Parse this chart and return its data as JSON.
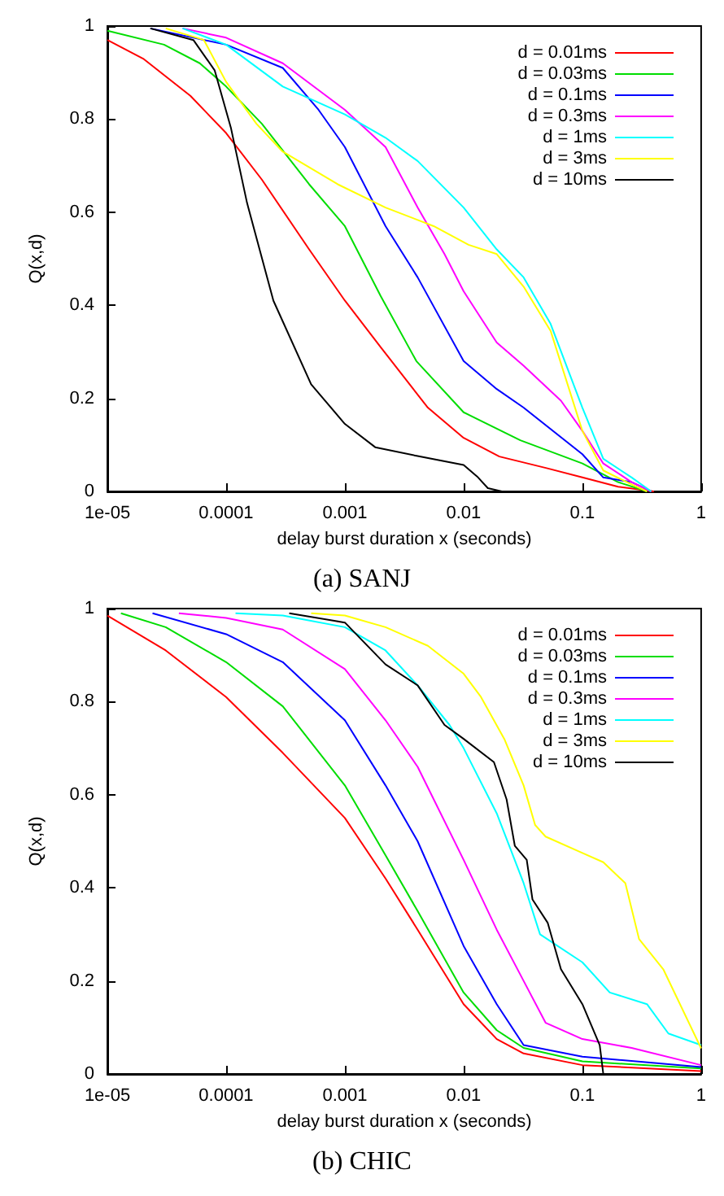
{
  "chart_data": [
    {
      "type": "line",
      "xlabel": "delay burst duration x (seconds)",
      "ylabel": "Q(x,d)",
      "annotations": [
        "(a) SANJ"
      ],
      "log": "x",
      "legend": "top right",
      "xlim": [
        1e-05,
        1
      ],
      "ylim": [
        0,
        1
      ],
      "xticks": [
        {
          "value": 1e-05,
          "label": "1e-05"
        },
        0.0001,
        0.001,
        0.01,
        0.1,
        1
      ],
      "yticks": [
        0,
        0.2,
        0.4,
        0.6,
        0.8,
        1
      ],
      "series": [
        {
          "name": "d = 0.01ms",
          "color": "#ff0000",
          "x": [
            1e-05,
            2e-05,
            5e-05,
            0.0001,
            0.0002,
            0.0005,
            0.001,
            0.002,
            0.005,
            0.01,
            0.02,
            0.05,
            0.1,
            0.2,
            0.4
          ],
          "values": [
            0.97,
            0.93,
            0.85,
            0.77,
            0.67,
            0.52,
            0.41,
            0.31,
            0.18,
            0.115,
            0.075,
            0.05,
            0.03,
            0.01,
            0
          ]
        },
        {
          "name": "d = 0.03ms",
          "color": "#00dd00",
          "x": [
            1e-05,
            3e-05,
            6e-05,
            0.0001,
            0.0002,
            0.0005,
            0.001,
            0.002,
            0.004,
            0.01,
            0.03,
            0.1,
            0.2,
            0.35
          ],
          "values": [
            0.99,
            0.96,
            0.92,
            0.87,
            0.79,
            0.66,
            0.57,
            0.42,
            0.28,
            0.17,
            0.11,
            0.06,
            0.02,
            0
          ]
        },
        {
          "name": "d = 0.1ms",
          "color": "#0000ff",
          "x": [
            2.3e-05,
            0.0001,
            0.0003,
            0.0006,
            0.001,
            0.0022,
            0.0041,
            0.01,
            0.019,
            0.032,
            0.1,
            0.15,
            0.26,
            0.38
          ],
          "values": [
            0.995,
            0.96,
            0.91,
            0.82,
            0.74,
            0.57,
            0.46,
            0.28,
            0.22,
            0.18,
            0.08,
            0.03,
            0.02,
            0
          ]
        },
        {
          "name": "d = 0.3ms",
          "color": "#ff00ff",
          "x": [
            4.3e-05,
            0.0001,
            0.0003,
            0.001,
            0.0022,
            0.0041,
            0.0069,
            0.01,
            0.019,
            0.032,
            0.066,
            0.1,
            0.15,
            0.26,
            0.38
          ],
          "values": [
            0.995,
            0.975,
            0.92,
            0.82,
            0.74,
            0.61,
            0.51,
            0.43,
            0.32,
            0.27,
            0.195,
            0.13,
            0.06,
            0.02,
            0
          ]
        },
        {
          "name": "d = 1ms",
          "color": "#00ffff",
          "x": [
            4.3e-05,
            0.0001,
            0.0003,
            0.001,
            0.0022,
            0.0041,
            0.01,
            0.019,
            0.032,
            0.054,
            0.1,
            0.15,
            0.26,
            0.38
          ],
          "values": [
            0.995,
            0.96,
            0.87,
            0.81,
            0.76,
            0.71,
            0.61,
            0.52,
            0.46,
            0.36,
            0.18,
            0.07,
            0.03,
            0
          ]
        },
        {
          "name": "d = 3ms",
          "color": "#ffff00",
          "x": [
            3.1e-05,
            6.5e-05,
            0.0001,
            0.00018,
            0.0003,
            0.00087,
            0.0022,
            0.0056,
            0.011,
            0.019,
            0.032,
            0.054,
            0.1,
            0.15,
            0.26,
            0.35
          ],
          "values": [
            0.995,
            0.97,
            0.88,
            0.79,
            0.73,
            0.66,
            0.61,
            0.57,
            0.53,
            0.51,
            0.44,
            0.345,
            0.13,
            0.045,
            0.015,
            0
          ]
        },
        {
          "name": "d = 10ms",
          "color": "#000000",
          "x": [
            2.3e-05,
            5.3e-05,
            8e-05,
            0.00011,
            0.00015,
            0.00025,
            0.00052,
            0.001,
            0.0018,
            0.0041,
            0.01,
            0.013,
            0.016,
            0.021
          ],
          "values": [
            0.995,
            0.97,
            0.905,
            0.78,
            0.62,
            0.41,
            0.23,
            0.145,
            0.095,
            0.076,
            0.057,
            0.032,
            0.007,
            0
          ]
        }
      ]
    },
    {
      "type": "line",
      "xlabel": "delay burst duration x (seconds)",
      "ylabel": "Q(x,d)",
      "annotations": [
        "(b) CHIC"
      ],
      "log": "x",
      "legend": "top right",
      "xlim": [
        1e-05,
        1
      ],
      "ylim": [
        0,
        1
      ],
      "xticks": [
        {
          "value": 1e-05,
          "label": "1e-05"
        },
        0.0001,
        0.001,
        0.01,
        0.1,
        1
      ],
      "yticks": [
        0,
        0.2,
        0.4,
        0.6,
        0.8,
        1
      ],
      "series": [
        {
          "name": "d = 0.01ms",
          "color": "#ff0000",
          "x": [
            1e-05,
            3.1e-05,
            0.0001,
            0.0003,
            0.001,
            0.0022,
            0.0041,
            0.01,
            0.019,
            0.032,
            0.1,
            1
          ],
          "values": [
            0.985,
            0.91,
            0.81,
            0.69,
            0.55,
            0.42,
            0.31,
            0.15,
            0.075,
            0.044,
            0.019,
            0.006
          ]
        },
        {
          "name": "d = 0.03ms",
          "color": "#00dd00",
          "x": [
            1.3e-05,
            3.1e-05,
            0.0001,
            0.0003,
            0.001,
            0.0022,
            0.0041,
            0.01,
            0.019,
            0.032,
            0.1,
            1
          ],
          "values": [
            0.99,
            0.96,
            0.885,
            0.79,
            0.62,
            0.47,
            0.35,
            0.175,
            0.094,
            0.056,
            0.027,
            0.012
          ]
        },
        {
          "name": "d = 0.1ms",
          "color": "#0000ff",
          "x": [
            2.4e-05,
            0.0001,
            0.0003,
            0.001,
            0.0022,
            0.0041,
            0.01,
            0.019,
            0.032,
            0.1,
            1
          ],
          "values": [
            0.99,
            0.945,
            0.885,
            0.76,
            0.62,
            0.5,
            0.275,
            0.15,
            0.062,
            0.037,
            0.015
          ]
        },
        {
          "name": "d = 0.3ms",
          "color": "#ff00ff",
          "x": [
            4e-05,
            0.0001,
            0.0003,
            0.001,
            0.0022,
            0.0041,
            0.01,
            0.019,
            0.032,
            0.049,
            0.1,
            0.26,
            1
          ],
          "values": [
            0.99,
            0.98,
            0.955,
            0.87,
            0.76,
            0.66,
            0.46,
            0.31,
            0.2,
            0.11,
            0.075,
            0.056,
            0.019
          ]
        },
        {
          "name": "d = 1ms",
          "color": "#00ffff",
          "x": [
            0.00012,
            0.0003,
            0.001,
            0.0022,
            0.0041,
            0.0076,
            0.01,
            0.019,
            0.032,
            0.044,
            0.1,
            0.17,
            0.35,
            0.53,
            1
          ],
          "values": [
            0.99,
            0.985,
            0.96,
            0.91,
            0.835,
            0.75,
            0.7,
            0.56,
            0.41,
            0.3,
            0.24,
            0.175,
            0.15,
            0.087,
            0.062
          ]
        },
        {
          "name": "d = 3ms",
          "color": "#ffff00",
          "x": [
            0.00052,
            0.001,
            0.0022,
            0.005,
            0.01,
            0.014,
            0.022,
            0.032,
            0.04,
            0.049,
            0.1,
            0.15,
            0.23,
            0.3,
            0.48,
            1
          ],
          "values": [
            0.99,
            0.985,
            0.96,
            0.92,
            0.86,
            0.81,
            0.72,
            0.62,
            0.535,
            0.51,
            0.475,
            0.455,
            0.41,
            0.29,
            0.225,
            0.055
          ]
        },
        {
          "name": "d = 10ms",
          "color": "#000000",
          "x": [
            0.00034,
            0.001,
            0.0022,
            0.0041,
            0.0069,
            0.01,
            0.018,
            0.023,
            0.027,
            0.034,
            0.038,
            0.051,
            0.066,
            0.1,
            0.14,
            0.15
          ],
          "values": [
            0.99,
            0.97,
            0.88,
            0.835,
            0.75,
            0.72,
            0.67,
            0.59,
            0.49,
            0.46,
            0.375,
            0.325,
            0.225,
            0.15,
            0.062,
            0
          ]
        }
      ]
    }
  ]
}
